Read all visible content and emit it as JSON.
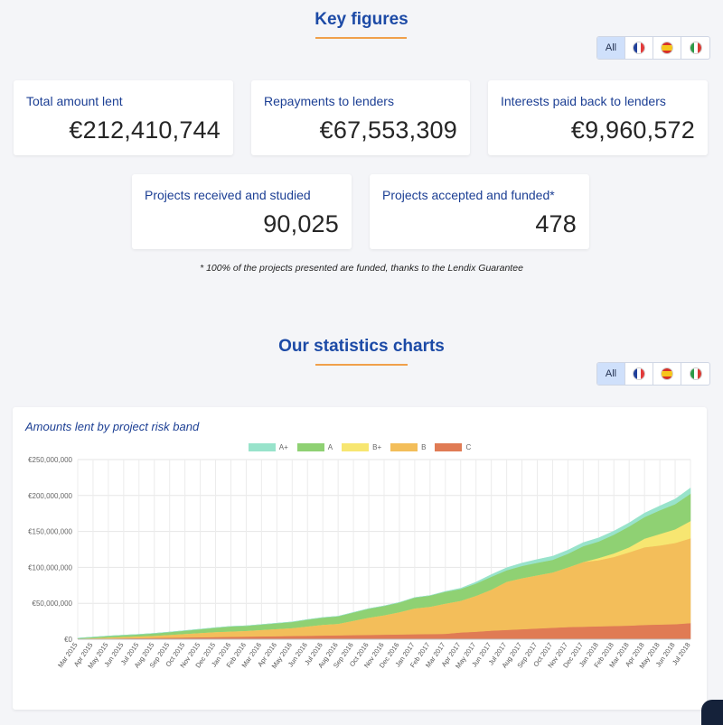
{
  "key_figures": {
    "title": "Key figures",
    "filters": {
      "all_label": "All",
      "flags": [
        "france-flag-icon",
        "spain-flag-icon",
        "italy-flag-icon"
      ]
    },
    "cards": [
      {
        "label": "Total amount lent",
        "value": "€212,410,744"
      },
      {
        "label": "Repayments to lenders",
        "value": "€67,553,309"
      },
      {
        "label": "Interests paid back to lenders",
        "value": "€9,960,572"
      },
      {
        "label": "Projects received and studied",
        "value": "90,025"
      },
      {
        "label": "Projects accepted and funded*",
        "value": "478"
      }
    ],
    "footnote": "* 100% of the projects presented are funded, thanks to the Lendix Guarantee"
  },
  "statistics": {
    "title": "Our statistics charts",
    "filters": {
      "all_label": "All",
      "flags": [
        "france-flag-icon",
        "spain-flag-icon",
        "italy-flag-icon"
      ]
    }
  },
  "colors": {
    "accent": "#1c4aa6",
    "underline": "#f0a04b"
  },
  "chart_data": {
    "type": "area",
    "stacked": true,
    "title": "Amounts lent by project risk band",
    "legend_position": "top",
    "grid": true,
    "ylim": [
      0,
      250000000
    ],
    "y_ticks": [
      "€0",
      "€50,000,000",
      "€100,000,000",
      "€150,000,000",
      "€200,000,000",
      "€250,000,000"
    ],
    "x": [
      "Mar 2015",
      "Apr 2015",
      "May 2015",
      "Jun 2015",
      "Jul 2015",
      "Aug 2015",
      "Sep 2015",
      "Oct 2015",
      "Nov 2015",
      "Dec 2015",
      "Jan 2016",
      "Feb 2016",
      "Mar 2016",
      "Apr 2016",
      "May 2016",
      "Jun 2016",
      "Jul 2016",
      "Aug 2016",
      "Sep 2016",
      "Oct 2016",
      "Nov 2016",
      "Dec 2016",
      "Jan 2017",
      "Feb 2017",
      "Mar 2017",
      "Apr 2017",
      "May 2017",
      "Jun 2017",
      "Jul 2017",
      "Aug 2017",
      "Sep 2017",
      "Oct 2017",
      "Nov 2017",
      "Dec 2017",
      "Jan 2018",
      "Feb 2018",
      "Mar 2018",
      "Apr 2018",
      "May 2018",
      "Jun 2018",
      "Jul 2018"
    ],
    "series": [
      {
        "name": "C",
        "color": "#e07b54",
        "values": [
          0.3,
          0.6,
          1,
          1.3,
          1.6,
          1.9,
          2.2,
          2.5,
          2.8,
          3.1,
          3.4,
          3.7,
          4,
          4.3,
          4.6,
          4.9,
          5.2,
          5.5,
          5.8,
          6.1,
          6.4,
          6.7,
          7,
          7.3,
          7.6,
          9.5,
          10.5,
          12,
          13,
          14,
          15,
          16,
          17,
          17.5,
          18,
          18.5,
          19,
          20,
          20.5,
          21,
          22.5
        ]
      },
      {
        "name": "B",
        "color": "#f3be5a",
        "values": [
          0.5,
          1,
          1.5,
          2,
          2.5,
          3,
          4,
          5,
          6,
          7,
          7.5,
          8,
          9,
          10,
          11,
          13,
          15,
          16,
          20,
          24,
          27,
          31,
          36,
          38,
          42,
          44,
          50,
          57,
          67,
          71,
          74,
          77,
          83,
          90,
          92,
          96,
          102,
          108,
          110,
          113,
          118
        ]
      },
      {
        "name": "B+",
        "color": "#f7e671",
        "values": [
          0,
          0,
          0,
          0,
          0,
          0,
          0,
          0,
          0,
          0,
          0,
          0,
          0,
          0,
          0,
          0,
          0,
          0,
          0,
          0,
          0,
          0,
          0,
          0,
          0,
          0,
          0,
          0,
          0,
          0,
          0,
          0,
          0,
          0,
          3,
          5,
          7,
          12,
          16,
          19,
          24
        ]
      },
      {
        "name": "A",
        "color": "#8fd173",
        "values": [
          0.7,
          1.4,
          2,
          2.4,
          2.7,
          3.3,
          3.8,
          4.5,
          5.2,
          6,
          7,
          7,
          7.5,
          8,
          8.5,
          9.5,
          10,
          10.5,
          11.5,
          12.5,
          13,
          13.5,
          15,
          15.5,
          16.5,
          16.5,
          17,
          18,
          16,
          17,
          17.5,
          17.5,
          19,
          22,
          23,
          26,
          29,
          30,
          33,
          35,
          38
        ]
      },
      {
        "name": "A+",
        "color": "#98e3cb",
        "values": [
          0,
          0,
          0,
          0,
          0,
          0,
          0,
          0,
          0,
          0,
          0,
          0,
          0,
          0,
          0,
          0,
          0,
          0,
          0,
          0,
          0,
          0,
          0,
          0,
          0.5,
          1,
          2,
          3,
          3.5,
          4,
          4.5,
          5,
          5,
          5,
          5,
          5,
          5,
          5.5,
          6,
          7,
          8
        ]
      }
    ],
    "units": "millions EUR"
  }
}
